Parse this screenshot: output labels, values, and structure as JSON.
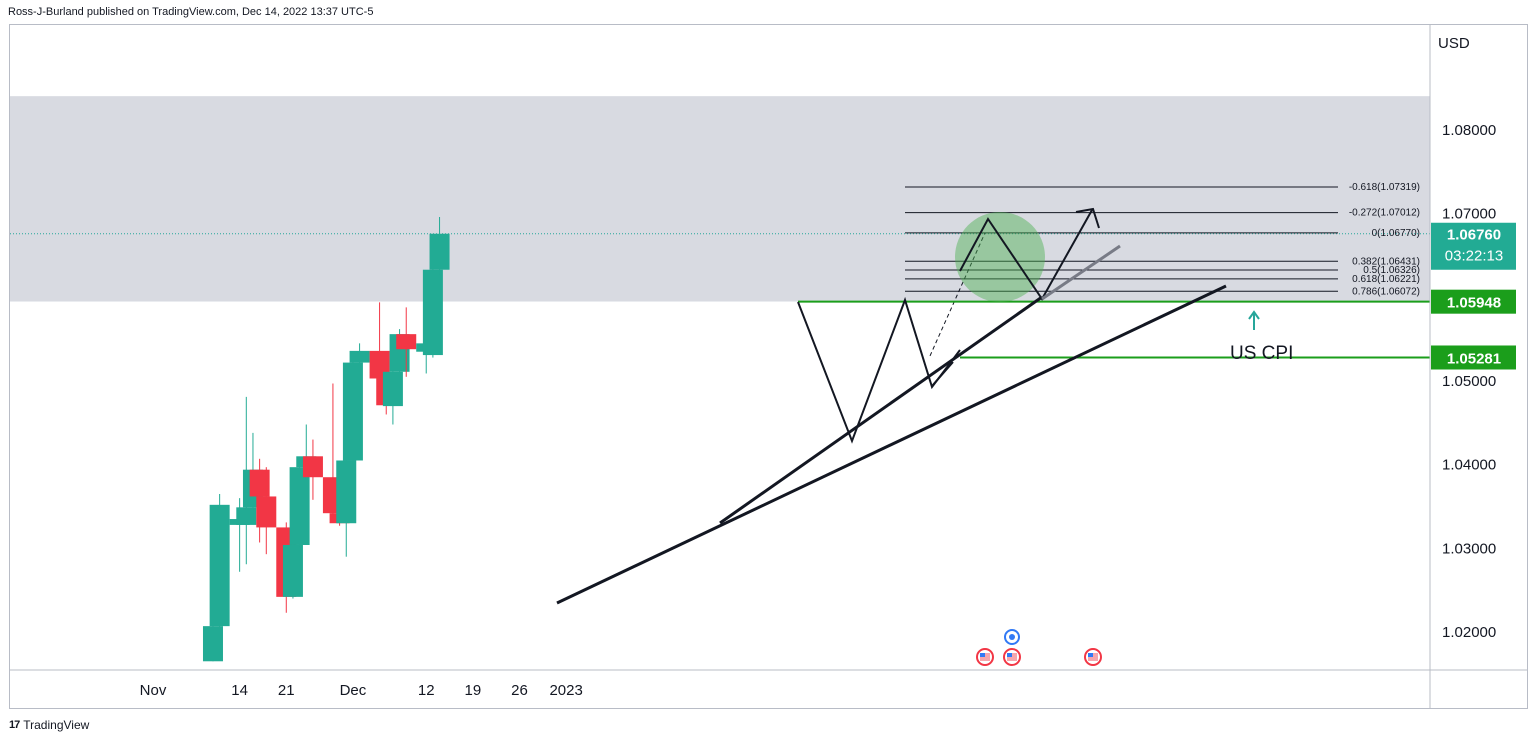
{
  "header": {
    "published_by": "Ross-J-Burland published on TradingView.com, Dec 14, 2022 13:37 UTC-5"
  },
  "footer": {
    "brand": "TradingView"
  },
  "colors": {
    "up": "#26a69a",
    "up_fill": "#22ab94",
    "down": "#f23645",
    "level_green": "#1b9e1b",
    "zone": "#d1d4dc",
    "circle": "#4caf50",
    "text": "#131722"
  },
  "chart_data": {
    "type": "candlestick",
    "currency_label": "USD",
    "ylim": [
      1.0165,
      1.085
    ],
    "y_ticks": [
      "1.02000",
      "1.03000",
      "1.04000",
      "1.05000",
      "1.07000",
      "1.08000"
    ],
    "x_ticks": [
      {
        "label": "Nov",
        "date": "2022-11-01"
      },
      {
        "label": "14",
        "date": "2022-11-14"
      },
      {
        "label": "21",
        "date": "2022-11-21"
      },
      {
        "label": "Dec",
        "date": "2022-12-01"
      },
      {
        "label": "12",
        "date": "2022-12-12"
      },
      {
        "label": "19",
        "date": "2022-12-19"
      },
      {
        "label": "26",
        "date": "2022-12-26"
      },
      {
        "label": "2023",
        "date": "2023-01-02"
      }
    ],
    "candles": [
      {
        "date": "2022-11-10",
        "o": 1.0165,
        "h": 1.0223,
        "l": 1.0165,
        "c": 1.0207
      },
      {
        "date": "2022-11-11",
        "o": 1.0207,
        "h": 1.0365,
        "l": 1.0172,
        "c": 1.0352
      },
      {
        "date": "2022-11-14",
        "o": 1.0328,
        "h": 1.036,
        "l": 1.0272,
        "c": 1.0335
      },
      {
        "date": "2022-11-15",
        "o": 1.0328,
        "h": 1.0481,
        "l": 1.0281,
        "c": 1.0349
      },
      {
        "date": "2022-11-16",
        "o": 1.0349,
        "h": 1.0438,
        "l": 1.033,
        "c": 1.0394
      },
      {
        "date": "2022-11-17",
        "o": 1.0394,
        "h": 1.0407,
        "l": 1.0307,
        "c": 1.0362
      },
      {
        "date": "2022-11-18",
        "o": 1.0362,
        "h": 1.0397,
        "l": 1.0293,
        "c": 1.0325
      },
      {
        "date": "2022-11-21",
        "o": 1.0325,
        "h": 1.0331,
        "l": 1.0223,
        "c": 1.0242
      },
      {
        "date": "2022-11-22",
        "o": 1.0242,
        "h": 1.0309,
        "l": 1.024,
        "c": 1.0304
      },
      {
        "date": "2022-11-23",
        "o": 1.0304,
        "h": 1.0398,
        "l": 1.0302,
        "c": 1.0397
      },
      {
        "date": "2022-11-24",
        "o": 1.0397,
        "h": 1.0448,
        "l": 1.0384,
        "c": 1.041
      },
      {
        "date": "2022-11-25",
        "o": 1.041,
        "h": 1.043,
        "l": 1.0358,
        "c": 1.0385
      },
      {
        "date": "2022-11-28",
        "o": 1.0385,
        "h": 1.0497,
        "l": 1.0332,
        "c": 1.0342
      },
      {
        "date": "2022-11-29",
        "o": 1.0342,
        "h": 1.038,
        "l": 1.0327,
        "c": 1.033
      },
      {
        "date": "2022-11-30",
        "o": 1.033,
        "h": 1.0429,
        "l": 1.029,
        "c": 1.0405
      },
      {
        "date": "2022-12-01",
        "o": 1.0405,
        "h": 1.0534,
        "l": 1.0393,
        "c": 1.0522
      },
      {
        "date": "2022-12-02",
        "o": 1.0522,
        "h": 1.0545,
        "l": 1.043,
        "c": 1.0536
      },
      {
        "date": "2022-12-05",
        "o": 1.0536,
        "h": 1.0594,
        "l": 1.0479,
        "c": 1.0503
      },
      {
        "date": "2022-12-06",
        "o": 1.0503,
        "h": 1.0509,
        "l": 1.046,
        "c": 1.0471
      },
      {
        "date": "2022-12-07",
        "o": 1.047,
        "h": 1.0528,
        "l": 1.0448,
        "c": 1.0511
      },
      {
        "date": "2022-12-08",
        "o": 1.0511,
        "h": 1.0562,
        "l": 1.0492,
        "c": 1.0556
      },
      {
        "date": "2022-12-09",
        "o": 1.0556,
        "h": 1.0588,
        "l": 1.0505,
        "c": 1.0538
      },
      {
        "date": "2022-12-12",
        "o": 1.0535,
        "h": 1.058,
        "l": 1.0509,
        "c": 1.0545
      },
      {
        "date": "2022-12-13",
        "o": 1.0531,
        "h": 1.0674,
        "l": 1.0528,
        "c": 1.0633
      },
      {
        "date": "2022-12-14",
        "o": 1.0633,
        "h": 1.0696,
        "l": 1.0627,
        "c": 1.0676
      }
    ],
    "fib_levels": [
      {
        "label": "-0.618(1.07319)",
        "value": 1.07319
      },
      {
        "label": "-0.272(1.07012)",
        "value": 1.07012
      },
      {
        "label": "0(1.06770)",
        "value": 1.0677
      },
      {
        "label": "0.382(1.06431)",
        "value": 1.06431
      },
      {
        "label": "0.5(1.06326)",
        "value": 1.06326
      },
      {
        "label": "0.618(1.06221)",
        "value": 1.06221
      },
      {
        "label": "0.786(1.06072)",
        "value": 1.06072
      }
    ],
    "current_price": {
      "label": "1.06760",
      "value": 1.0676,
      "countdown": "03:22:13"
    },
    "levels": [
      {
        "label": "1.05948",
        "value": 1.05948
      },
      {
        "label": "1.05281",
        "value": 1.05281
      }
    ],
    "annotation": {
      "text": "US CPI"
    },
    "resistance_zone": [
      1.0595,
      1.085
    ],
    "event_markers": [
      "2022-12-14",
      "2022-12-15",
      "2022-12-21"
    ]
  }
}
